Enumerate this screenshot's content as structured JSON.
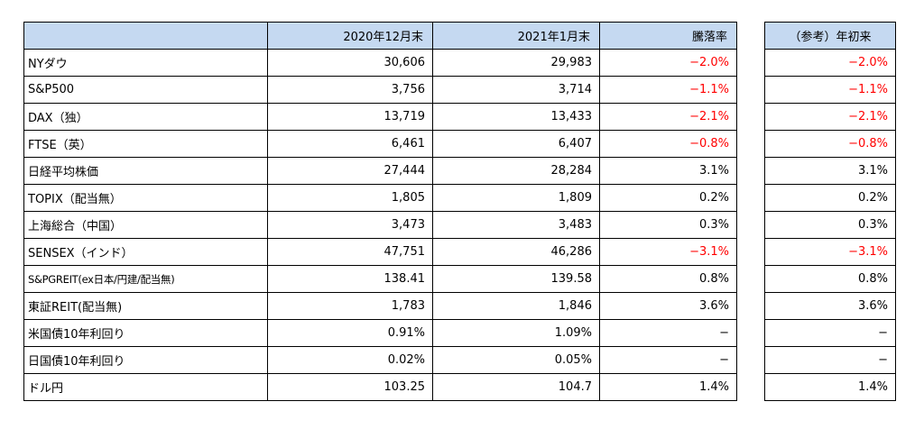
{
  "headers": {
    "name": "",
    "dec2020": "2020年12月末",
    "jan2021": "2021年1月末",
    "change": "騰落率",
    "ytd": "（参考）年初来"
  },
  "colors": {
    "header_bg": "#c5d9f1",
    "negative": "#ff0000",
    "border": "#000000"
  },
  "rows": [
    {
      "name": "NYダウ",
      "dec2020": "30,606",
      "jan2021": "29,983",
      "change": "−2.0%",
      "ytd": "−2.0%",
      "negative": true
    },
    {
      "name": "S&P500",
      "dec2020": "3,756",
      "jan2021": "3,714",
      "change": "−1.1%",
      "ytd": "−1.1%",
      "negative": true
    },
    {
      "name": "DAX（独）",
      "dec2020": "13,719",
      "jan2021": "13,433",
      "change": "−2.1%",
      "ytd": "−2.1%",
      "negative": true
    },
    {
      "name": "FTSE（英）",
      "dec2020": "6,461",
      "jan2021": "6,407",
      "change": "−0.8%",
      "ytd": "−0.8%",
      "negative": true
    },
    {
      "name": "日経平均株価",
      "dec2020": "27,444",
      "jan2021": "28,284",
      "change": "3.1%",
      "ytd": "3.1%",
      "negative": false
    },
    {
      "name": "TOPIX（配当無）",
      "dec2020": "1,805",
      "jan2021": "1,809",
      "change": "0.2%",
      "ytd": "0.2%",
      "negative": false
    },
    {
      "name": "上海総合（中国）",
      "dec2020": "3,473",
      "jan2021": "3,483",
      "change": "0.3%",
      "ytd": "0.3%",
      "negative": false
    },
    {
      "name": "SENSEX（インド）",
      "dec2020": "47,751",
      "jan2021": "46,286",
      "change": "−3.1%",
      "ytd": "−3.1%",
      "negative": true
    },
    {
      "name": "S&PGREIT(ex日本/円建/配当無)",
      "dec2020": "138.41",
      "jan2021": "139.58",
      "change": "0.8%",
      "ytd": "0.8%",
      "negative": false,
      "small": true
    },
    {
      "name": "東証REIT(配当無)",
      "dec2020": "1,783",
      "jan2021": "1,846",
      "change": "3.6%",
      "ytd": "3.6%",
      "negative": false
    },
    {
      "name": "米国債10年利回り",
      "dec2020": "0.91%",
      "jan2021": "1.09%",
      "change": "−",
      "ytd": "−",
      "negative": false
    },
    {
      "name": "日国債10年利回り",
      "dec2020": "0.02%",
      "jan2021": "0.05%",
      "change": "−",
      "ytd": "−",
      "negative": false
    },
    {
      "name": "ドル円",
      "dec2020": "103.25",
      "jan2021": "104.7",
      "change": "1.4%",
      "ytd": "1.4%",
      "negative": false
    }
  ]
}
